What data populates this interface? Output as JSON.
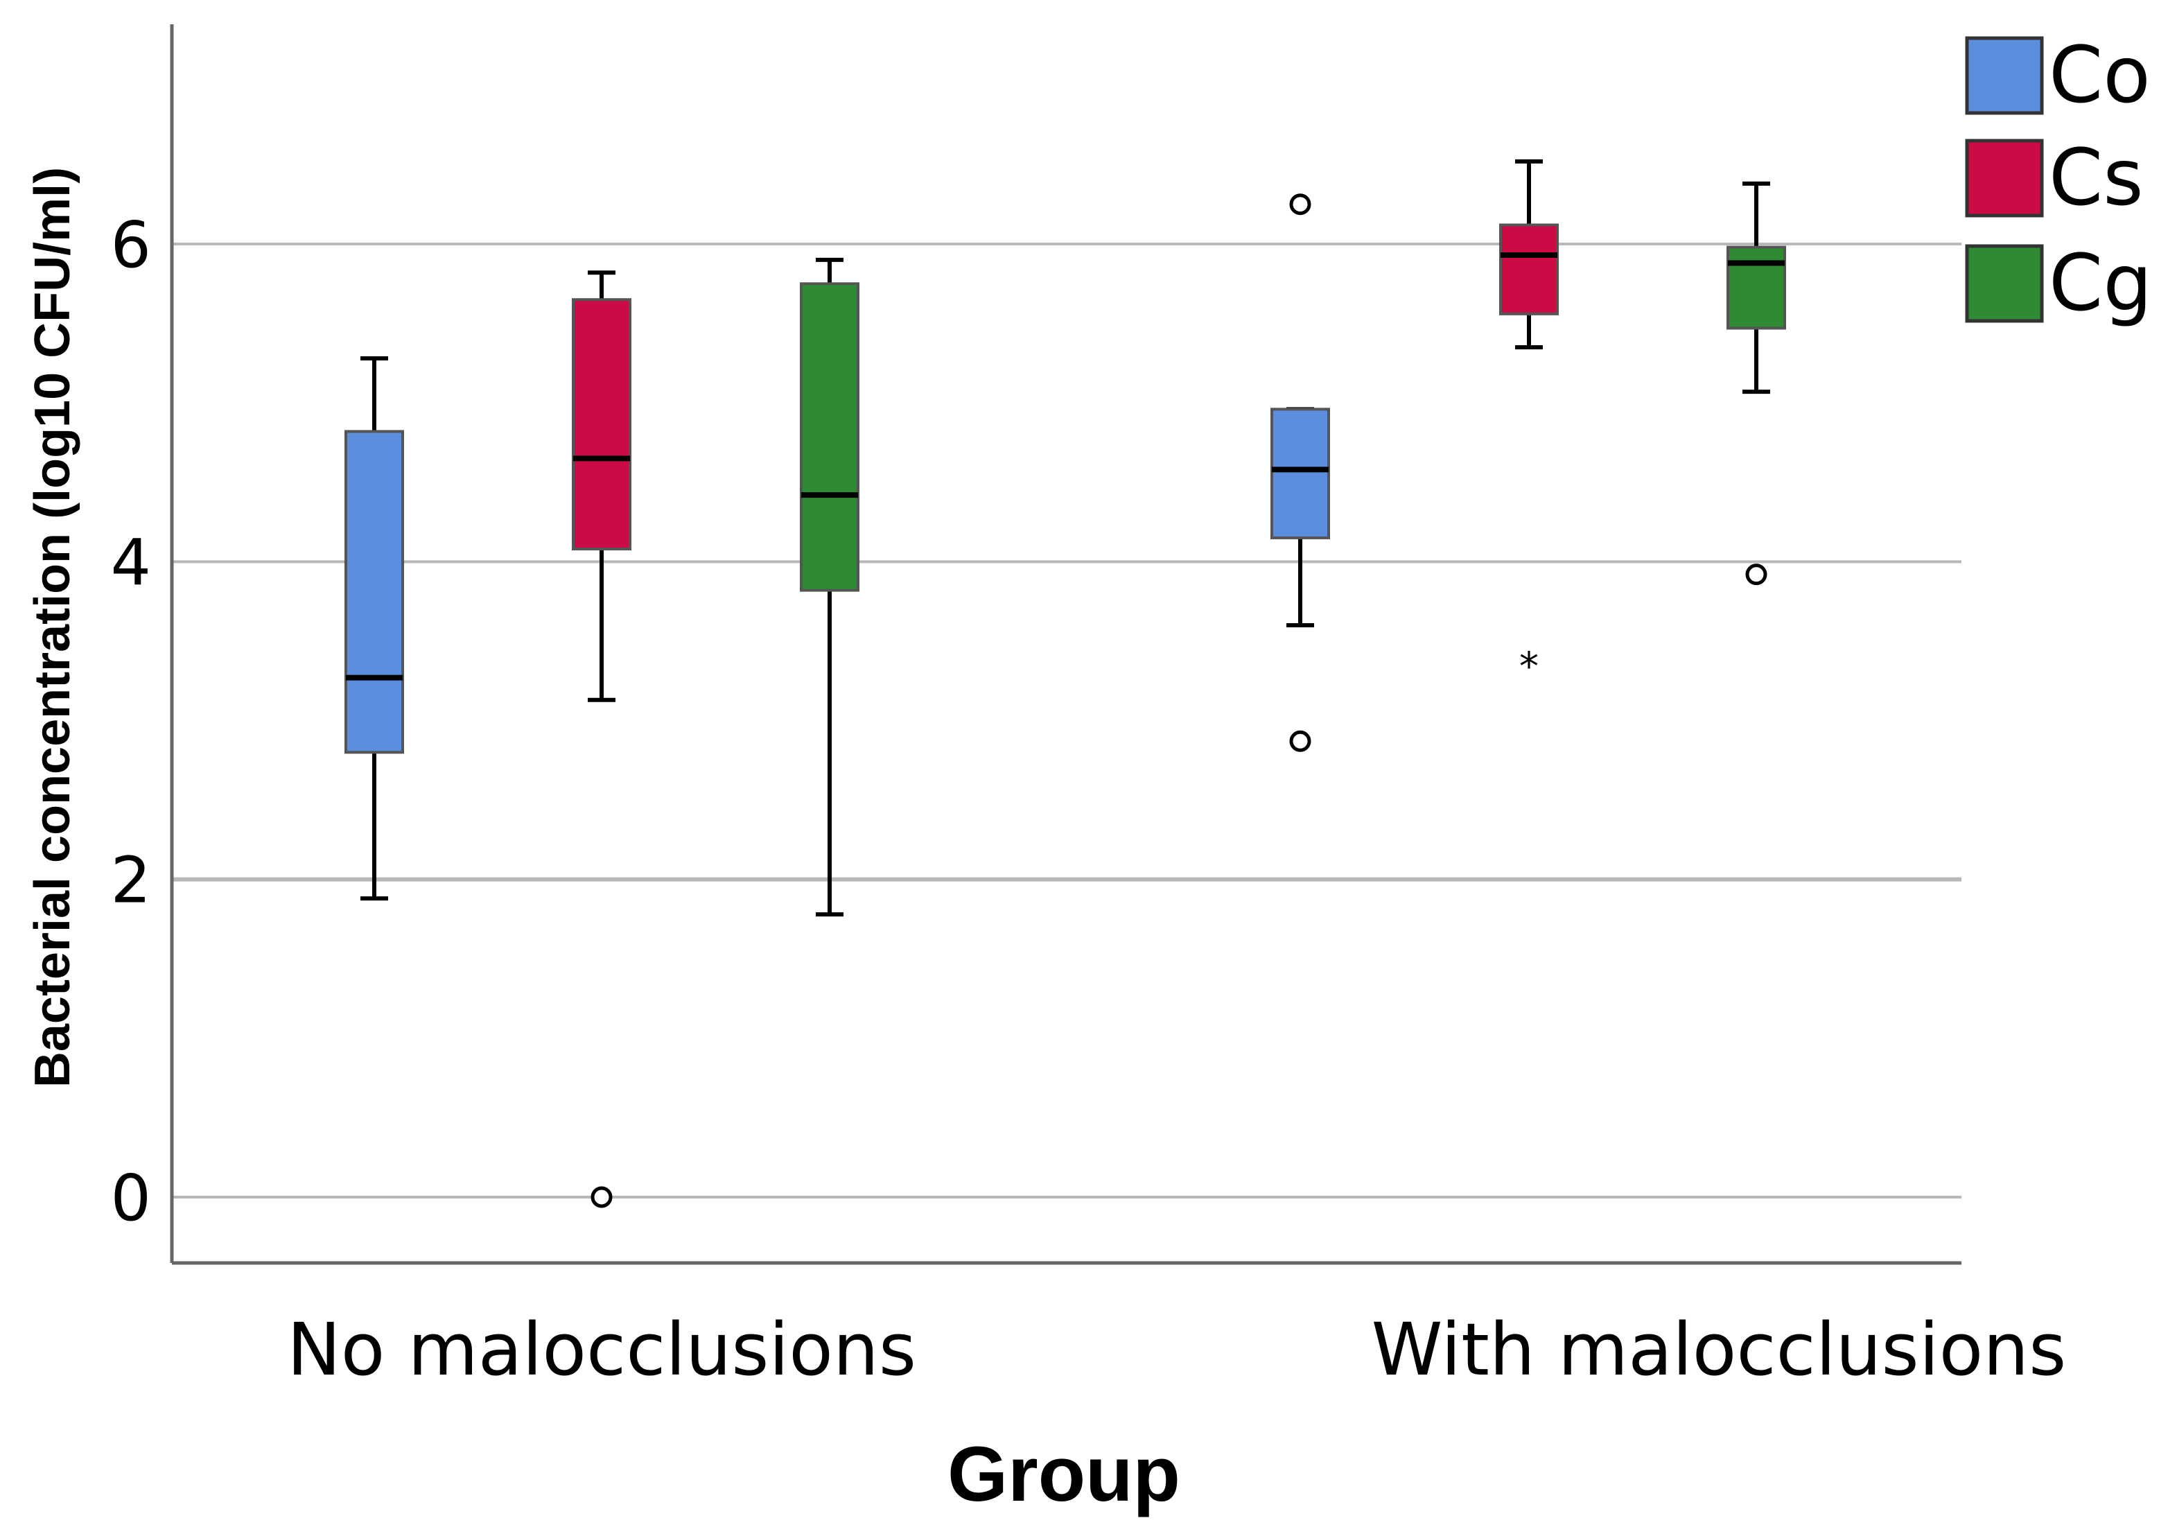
{
  "chart_data": {
    "type": "boxplot",
    "xlabel": "Group",
    "ylabel": "Bacterial concentration (log10 CFU/ml)",
    "ylim": [
      -0.4,
      7.4
    ],
    "yticks": [
      0,
      2,
      4,
      6
    ],
    "grid": true,
    "legend_position": "top-right",
    "categories": [
      "No malocclusions",
      "With malocclusions"
    ],
    "series": [
      {
        "name": "Co",
        "color": "#5B8FDD",
        "boxes": [
          {
            "whisker_low": 1.88,
            "q1": 2.8,
            "median": 3.27,
            "q3": 4.82,
            "whisker_high": 5.28,
            "outliers": []
          },
          {
            "whisker_low": 3.6,
            "q1": 4.15,
            "median": 4.58,
            "q3": 4.96,
            "whisker_high": 4.96,
            "outliers": [
              6.25,
              2.87
            ]
          }
        ]
      },
      {
        "name": "Cs",
        "color": "#CC0A45",
        "boxes": [
          {
            "whisker_low": 3.13,
            "q1": 4.08,
            "median": 4.65,
            "q3": 5.65,
            "whisker_high": 5.82,
            "outliers": [
              0
            ]
          },
          {
            "whisker_low": 5.35,
            "q1": 5.56,
            "median": 5.93,
            "q3": 6.12,
            "whisker_high": 6.52,
            "outliers": [],
            "extremes": [
              3.38
            ]
          }
        ]
      },
      {
        "name": "Cg",
        "color": "#2E8B33",
        "boxes": [
          {
            "whisker_low": 1.78,
            "q1": 3.82,
            "median": 4.42,
            "q3": 5.75,
            "whisker_high": 5.9,
            "outliers": []
          },
          {
            "whisker_low": 5.07,
            "q1": 5.47,
            "median": 5.88,
            "q3": 5.98,
            "whisker_high": 6.38,
            "outliers": [
              3.92
            ]
          }
        ]
      }
    ]
  }
}
